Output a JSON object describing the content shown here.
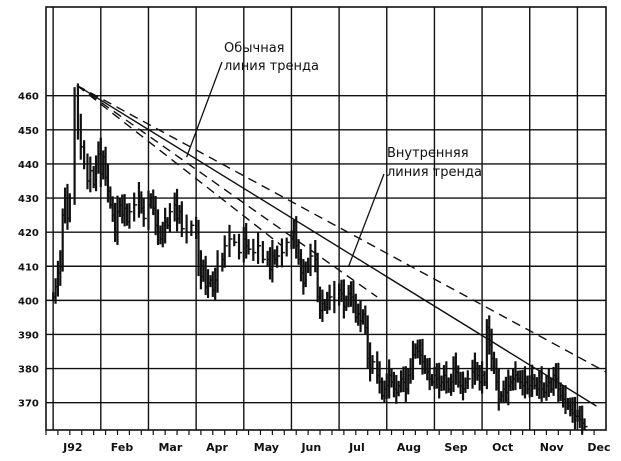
{
  "chart_data": {
    "type": "bar",
    "subtype": "high-low price bars",
    "title": "",
    "xlabel": "",
    "ylabel": "",
    "ylim": [
      362,
      486
    ],
    "grid": true,
    "y_ticks": [
      370,
      380,
      390,
      400,
      410,
      420,
      430,
      440,
      450,
      460
    ],
    "y_tick_labels": [
      "370",
      "380",
      "390",
      "400",
      "410",
      "420",
      "430",
      "440",
      "450",
      "460"
    ],
    "x_tick_labels": [
      "J92",
      "Feb",
      "Mar",
      "Apr",
      "May",
      "Jun",
      "Jul",
      "Aug",
      "Sep",
      "Oct",
      "Nov",
      "Dec"
    ],
    "x_unit": "months from start of 1992",
    "xlim": [
      -0.15,
      11.6
    ],
    "price_series": [
      [
        0.0,
        401
      ],
      [
        0.05,
        404
      ],
      [
        0.1,
        408
      ],
      [
        0.15,
        410
      ],
      [
        0.2,
        425
      ],
      [
        0.25,
        430
      ],
      [
        0.3,
        424
      ],
      [
        0.35,
        430
      ],
      [
        0.45,
        460
      ],
      [
        0.52,
        450
      ],
      [
        0.58,
        445
      ],
      [
        0.65,
        440
      ],
      [
        0.72,
        435
      ],
      [
        0.78,
        438
      ],
      [
        0.85,
        434
      ],
      [
        0.9,
        440
      ],
      [
        0.95,
        443
      ],
      [
        1.0,
        437
      ],
      [
        1.05,
        442
      ],
      [
        1.1,
        436
      ],
      [
        1.15,
        432
      ],
      [
        1.2,
        428
      ],
      [
        1.25,
        425
      ],
      [
        1.3,
        420
      ],
      [
        1.35,
        426
      ],
      [
        1.4,
        428
      ],
      [
        1.45,
        425
      ],
      [
        1.5,
        427
      ],
      [
        1.55,
        423
      ],
      [
        1.6,
        426
      ],
      [
        1.7,
        428
      ],
      [
        1.8,
        430
      ],
      [
        1.85,
        427
      ],
      [
        1.9,
        424
      ],
      [
        2.0,
        428
      ],
      [
        2.05,
        430
      ],
      [
        2.1,
        427
      ],
      [
        2.15,
        422
      ],
      [
        2.2,
        420
      ],
      [
        2.25,
        418
      ],
      [
        2.3,
        420
      ],
      [
        2.35,
        423
      ],
      [
        2.4,
        422
      ],
      [
        2.45,
        426
      ],
      [
        2.55,
        428
      ],
      [
        2.6,
        424
      ],
      [
        2.65,
        426
      ],
      [
        2.7,
        421
      ],
      [
        2.8,
        420
      ],
      [
        2.9,
        422
      ],
      [
        3.0,
        420
      ],
      [
        3.05,
        410
      ],
      [
        3.1,
        407
      ],
      [
        3.15,
        410
      ],
      [
        3.2,
        404
      ],
      [
        3.25,
        405
      ],
      [
        3.3,
        406
      ],
      [
        3.35,
        403
      ],
      [
        3.4,
        406
      ],
      [
        3.45,
        410
      ],
      [
        3.55,
        412
      ],
      [
        3.6,
        416
      ],
      [
        3.7,
        418
      ],
      [
        3.8,
        417
      ],
      [
        3.9,
        414
      ],
      [
        4.0,
        418
      ],
      [
        4.05,
        416
      ],
      [
        4.1,
        415
      ],
      [
        4.2,
        414
      ],
      [
        4.3,
        416
      ],
      [
        4.4,
        412
      ],
      [
        4.5,
        412
      ],
      [
        4.55,
        409
      ],
      [
        4.6,
        413
      ],
      [
        4.65,
        412
      ],
      [
        4.7,
        413
      ],
      [
        4.8,
        414
      ],
      [
        4.9,
        417
      ],
      [
        5.0,
        418
      ],
      [
        5.05,
        420
      ],
      [
        5.1,
        416
      ],
      [
        5.15,
        412
      ],
      [
        5.2,
        408
      ],
      [
        5.25,
        405
      ],
      [
        5.3,
        410
      ],
      [
        5.35,
        410
      ],
      [
        5.4,
        413
      ],
      [
        5.5,
        412
      ],
      [
        5.55,
        401
      ],
      [
        5.6,
        397
      ],
      [
        5.65,
        399
      ],
      [
        5.7,
        398
      ],
      [
        5.75,
        400
      ],
      [
        5.8,
        401
      ],
      [
        5.9,
        400
      ],
      [
        6.0,
        403
      ],
      [
        6.05,
        402
      ],
      [
        6.1,
        398
      ],
      [
        6.15,
        400
      ],
      [
        6.2,
        402
      ],
      [
        6.25,
        401
      ],
      [
        6.3,
        400
      ],
      [
        6.35,
        395
      ],
      [
        6.4,
        396
      ],
      [
        6.45,
        394
      ],
      [
        6.5,
        396
      ],
      [
        6.55,
        392
      ],
      [
        6.6,
        383
      ],
      [
        6.65,
        380
      ],
      [
        6.7,
        382
      ],
      [
        6.8,
        378
      ],
      [
        6.85,
        376
      ],
      [
        6.9,
        372
      ],
      [
        6.95,
        374
      ],
      [
        7.0,
        375
      ],
      [
        7.05,
        378
      ],
      [
        7.1,
        376
      ],
      [
        7.15,
        374
      ],
      [
        7.2,
        373
      ],
      [
        7.25,
        375
      ],
      [
        7.3,
        377
      ],
      [
        7.35,
        376
      ],
      [
        7.4,
        374
      ],
      [
        7.45,
        378
      ],
      [
        7.5,
        380
      ],
      [
        7.55,
        384
      ],
      [
        7.6,
        386
      ],
      [
        7.65,
        385
      ],
      [
        7.7,
        384
      ],
      [
        7.75,
        382
      ],
      [
        7.8,
        380
      ],
      [
        7.85,
        379
      ],
      [
        7.9,
        377
      ],
      [
        7.95,
        376
      ],
      [
        8.0,
        378
      ],
      [
        8.05,
        377
      ],
      [
        8.1,
        375
      ],
      [
        8.15,
        376
      ],
      [
        8.2,
        378
      ],
      [
        8.25,
        376
      ],
      [
        8.3,
        374
      ],
      [
        8.35,
        376
      ],
      [
        8.4,
        380
      ],
      [
        8.45,
        379
      ],
      [
        8.5,
        376
      ],
      [
        8.55,
        375
      ],
      [
        8.6,
        374
      ],
      [
        8.65,
        376
      ],
      [
        8.7,
        377
      ],
      [
        8.8,
        379
      ],
      [
        8.85,
        380
      ],
      [
        8.9,
        378
      ],
      [
        8.95,
        376
      ],
      [
        9.0,
        378
      ],
      [
        9.05,
        376
      ],
      [
        9.1,
        392
      ],
      [
        9.15,
        387
      ],
      [
        9.2,
        383
      ],
      [
        9.25,
        380
      ],
      [
        9.3,
        376
      ],
      [
        9.35,
        371
      ],
      [
        9.4,
        372
      ],
      [
        9.45,
        374
      ],
      [
        9.5,
        373
      ],
      [
        9.55,
        375
      ],
      [
        9.6,
        376
      ],
      [
        9.65,
        377
      ],
      [
        9.7,
        378
      ],
      [
        9.75,
        377
      ],
      [
        9.8,
        376
      ],
      [
        9.85,
        375
      ],
      [
        9.9,
        376
      ],
      [
        9.95,
        374
      ],
      [
        10.0,
        375
      ],
      [
        10.05,
        377
      ],
      [
        10.1,
        375
      ],
      [
        10.15,
        374
      ],
      [
        10.2,
        376
      ],
      [
        10.25,
        374
      ],
      [
        10.3,
        373
      ],
      [
        10.35,
        375
      ],
      [
        10.4,
        376
      ],
      [
        10.45,
        374
      ],
      [
        10.5,
        378
      ],
      [
        10.55,
        377
      ],
      [
        10.6,
        374
      ],
      [
        10.65,
        372
      ],
      [
        10.7,
        371
      ],
      [
        10.75,
        370
      ],
      [
        10.8,
        369
      ],
      [
        10.85,
        368
      ],
      [
        10.9,
        367
      ],
      [
        10.95,
        366
      ],
      [
        11.0,
        366
      ],
      [
        11.05,
        365
      ],
      [
        11.1,
        364
      ],
      [
        11.15,
        363
      ]
    ],
    "price_series_note": "high-low bars drawn around each point",
    "trend_lines": [
      {
        "style": "dashed",
        "from": [
          0.5,
          463
        ],
        "to": [
          11.6,
          379
        ]
      },
      {
        "style": "dashed",
        "from": [
          0.5,
          463
        ],
        "to": [
          6.8,
          401
        ]
      },
      {
        "style": "dashed",
        "from": [
          0.5,
          463
        ],
        "to": [
          4.8,
          416
        ]
      },
      {
        "style": "solid",
        "from": [
          0.5,
          463
        ],
        "to": [
          11.4,
          369
        ]
      }
    ],
    "annotations": [
      {
        "lines": [
          "Обычная",
          "линия тренда"
        ],
        "pointer_to": [
          2.8,
          442
        ]
      },
      {
        "lines": [
          "Внутренняя",
          "линия тренда"
        ],
        "pointer_to": [
          6.2,
          410
        ]
      }
    ],
    "colors": {
      "ink": "#111111",
      "background": "#ffffff"
    }
  }
}
